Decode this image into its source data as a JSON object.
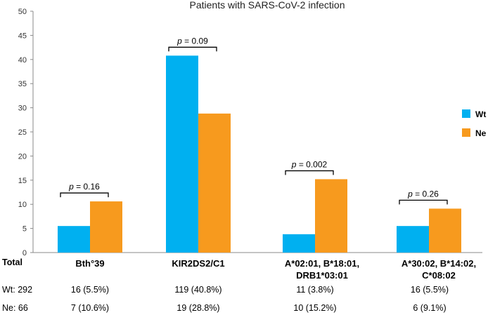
{
  "chart_data": {
    "type": "bar",
    "title": "Patients with SARS-CoV-2 infection",
    "categories": [
      "Bth°39",
      "KIR2DS2/C1",
      "A*02:01, B*18:01, DRB1*03:01",
      "A*30:02, B*14:02, C*08:02"
    ],
    "category_lines": [
      [
        "Bth°39"
      ],
      [
        "KIR2DS2/C1"
      ],
      [
        "A*02:01, B*18:01,",
        "DRB1*03:01"
      ],
      [
        "A*30:02, B*14:02,",
        "C*08:02"
      ]
    ],
    "series": [
      {
        "name": "Wt",
        "color": "#00B0F0",
        "values": [
          5.5,
          40.8,
          3.8,
          5.5
        ]
      },
      {
        "name": "Ne",
        "color": "#F79A1E",
        "values": [
          10.6,
          28.8,
          15.2,
          9.1
        ]
      }
    ],
    "p_values": [
      "0.16",
      "0.09",
      "0.002",
      "0.26"
    ],
    "p_prefix": "p",
    "ylim": [
      0,
      50
    ],
    "yticks": [
      0,
      5,
      10,
      15,
      20,
      25,
      30,
      35,
      40,
      45,
      50
    ],
    "xlabel": "",
    "ylabel": "",
    "legend_position": "right"
  },
  "table": {
    "header_label": "Total",
    "rows": [
      {
        "label": "Wt: 292",
        "cells": [
          "16 (5.5%)",
          "119 (40.8%)",
          "11 (3.8%)",
          "16 (5.5%)"
        ]
      },
      {
        "label": "Ne: 66",
        "cells": [
          "7 (10.6%)",
          "19 (28.8%)",
          "10 (15.2%)",
          "6 (9.1%)"
        ]
      }
    ]
  }
}
